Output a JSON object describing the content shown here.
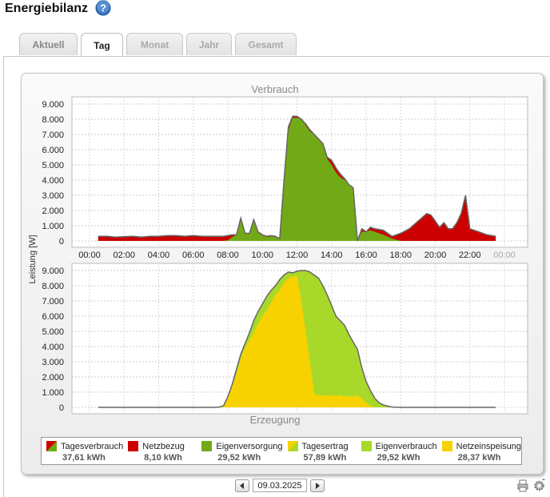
{
  "page": {
    "title": "Energiebilanz"
  },
  "help": {
    "icon": "help-icon",
    "glyph": "?"
  },
  "tabs": [
    {
      "label": "Aktuell",
      "state": "inactive"
    },
    {
      "label": "Tag",
      "state": "active"
    },
    {
      "label": "Monat",
      "state": "disabled"
    },
    {
      "label": "Jahr",
      "state": "disabled"
    },
    {
      "label": "Gesamt",
      "state": "disabled"
    }
  ],
  "chart_data": [
    {
      "type": "area",
      "title": "Verbrauch",
      "ylabel": "Leistung [W]",
      "ylim": [
        0,
        9000
      ],
      "yticks": [
        "9.000",
        "8.000",
        "7.000",
        "6.000",
        "5.000",
        "4.000",
        "3.000",
        "2.000",
        "1.000",
        "0"
      ],
      "xticks": [
        "00:00",
        "02:00",
        "04:00",
        "06:00",
        "08:00",
        "10:00",
        "12:00",
        "14:00",
        "16:00",
        "18:00",
        "20:00",
        "22:00",
        "00:00"
      ],
      "x": [
        0.5,
        1,
        1.5,
        2,
        2.5,
        3,
        3.5,
        4,
        4.5,
        5,
        5.5,
        6,
        6.5,
        7,
        7.5,
        7.75,
        8,
        8.25,
        8.5,
        8.75,
        9,
        9.25,
        9.5,
        9.75,
        10,
        10.25,
        10.5,
        10.75,
        11,
        11.25,
        11.5,
        11.75,
        12,
        12.25,
        12.5,
        12.75,
        13,
        13.25,
        13.5,
        13.75,
        14,
        14.25,
        14.5,
        14.75,
        15,
        15.25,
        15.5,
        15.75,
        16,
        16.25,
        16.5,
        17,
        17.5,
        18,
        18.5,
        19,
        19.5,
        19.75,
        20,
        20.25,
        20.5,
        20.75,
        21,
        21.25,
        21.5,
        21.75,
        22,
        22.5,
        23,
        23.5
      ],
      "series": [
        {
          "name": "Tagesverbrauch",
          "color": "#666666",
          "values": [
            300,
            300,
            250,
            280,
            300,
            250,
            300,
            300,
            350,
            350,
            300,
            350,
            300,
            300,
            300,
            300,
            350,
            400,
            400,
            1500,
            500,
            500,
            1400,
            600,
            400,
            300,
            350,
            300,
            150,
            4000,
            7500,
            8200,
            8200,
            8000,
            7700,
            7300,
            7000,
            6700,
            6400,
            5500,
            5300,
            4800,
            4400,
            4100,
            3700,
            3500,
            0,
            800,
            600,
            900,
            800,
            700,
            300,
            500,
            800,
            1300,
            1800,
            1700,
            1300,
            900,
            1200,
            800,
            800,
            1200,
            1800,
            3000,
            800,
            600,
            400,
            300
          ]
        },
        {
          "name": "Eigenversorgung",
          "color": "#71aa16",
          "values": [
            0,
            0,
            0,
            0,
            0,
            0,
            0,
            0,
            0,
            0,
            0,
            0,
            0,
            0,
            0,
            0,
            50,
            250,
            400,
            1400,
            500,
            450,
            1300,
            550,
            350,
            250,
            300,
            250,
            150,
            3800,
            7300,
            8100,
            8100,
            8000,
            7600,
            7200,
            7000,
            6700,
            6400,
            5400,
            5000,
            4500,
            4200,
            4000,
            3700,
            3500,
            0,
            600,
            600,
            700,
            600,
            400,
            150,
            0,
            0,
            0,
            0,
            0,
            0,
            0,
            0,
            0,
            0,
            0,
            0,
            0,
            0,
            0,
            0,
            0
          ]
        }
      ]
    },
    {
      "type": "area",
      "title": "Erzeugung",
      "ylabel": "",
      "ylim": [
        0,
        9000
      ],
      "yticks": [
        "9.000",
        "8.000",
        "7.000",
        "6.000",
        "5.000",
        "4.000",
        "3.000",
        "2.000",
        "1.000",
        "0"
      ],
      "x": [
        0.5,
        2,
        4,
        6,
        7,
        7.25,
        7.5,
        7.75,
        8,
        8.25,
        8.5,
        8.75,
        9,
        9.25,
        9.5,
        9.75,
        10,
        10.25,
        10.5,
        10.75,
        11,
        11.25,
        11.5,
        11.75,
        12,
        12.25,
        12.5,
        12.75,
        13,
        13.25,
        13.5,
        13.75,
        14,
        14.25,
        14.5,
        14.75,
        15,
        15.25,
        15.5,
        15.75,
        16,
        16.25,
        16.5,
        16.75,
        17,
        17.5,
        18,
        19,
        20,
        21,
        22,
        23,
        23.5
      ],
      "series": [
        {
          "name": "Tagesertrag",
          "color": "#666666",
          "values": [
            0,
            0,
            0,
            0,
            0,
            0,
            20,
            100,
            700,
            1500,
            2500,
            3500,
            4200,
            4900,
            5700,
            6300,
            6800,
            7300,
            7700,
            8000,
            8400,
            8700,
            8900,
            8850,
            8950,
            9000,
            9000,
            8900,
            8700,
            8500,
            8000,
            7400,
            6700,
            6000,
            5700,
            5400,
            4800,
            4300,
            3800,
            2600,
            1700,
            1100,
            600,
            300,
            150,
            20,
            0,
            0,
            0,
            0,
            0,
            0,
            0
          ]
        },
        {
          "name": "Netzeinspeisung",
          "color": "#f7d200",
          "values": [
            0,
            0,
            0,
            0,
            0,
            0,
            20,
            100,
            600,
            1400,
            2200,
            3200,
            3900,
            4400,
            4900,
            5500,
            6000,
            6400,
            6900,
            7400,
            7700,
            8200,
            8500,
            8600,
            8700,
            7000,
            5000,
            3000,
            900,
            800,
            800,
            750,
            800,
            750,
            800,
            700,
            750,
            700,
            800,
            600,
            300,
            100,
            0,
            0,
            0,
            0,
            0,
            0,
            0,
            0,
            0,
            0,
            0
          ]
        }
      ]
    }
  ],
  "legend": [
    {
      "label": "Tagesverbrauch",
      "value": "37,61 kWh",
      "swatch": [
        "#cc0000",
        "#71aa16"
      ]
    },
    {
      "label": "Netzbezug",
      "value": "8,10 kWh",
      "swatch": [
        "#cc0000",
        "#cc0000"
      ]
    },
    {
      "label": "Eigenversorgung",
      "value": "29,52 kWh",
      "swatch": [
        "#71aa16",
        "#71aa16"
      ]
    },
    {
      "label": "Tagesertrag",
      "value": "57,89 kWh",
      "swatch": [
        "#f7d200",
        "#a8d92a"
      ]
    },
    {
      "label": "Eigenverbrauch",
      "value": "29,52 kWh",
      "swatch": [
        "#a8d92a",
        "#a8d92a"
      ]
    },
    {
      "label": "Netzeinspeisung",
      "value": "28,37 kWh",
      "swatch": [
        "#f7d200",
        "#f7d200"
      ]
    }
  ],
  "colors": {
    "netzbezug": "#cc0000",
    "eigenversorgung": "#71aa16",
    "eigenverbrauch": "#a8d92a",
    "netzeinspeisung": "#f7d200",
    "outline": "#666666"
  },
  "date_nav": {
    "date": "09.03.2025",
    "prev_icon": "triangle-left-icon",
    "next_icon": "triangle-right-icon"
  },
  "footer_icons": [
    "print-icon",
    "settings-icon"
  ]
}
